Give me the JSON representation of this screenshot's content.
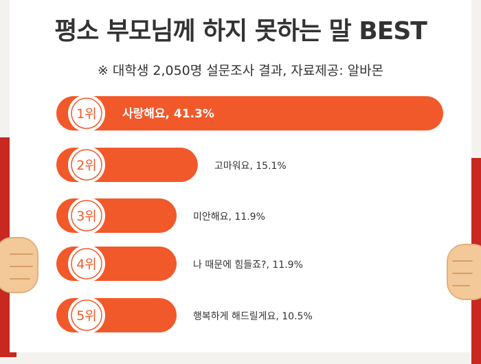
{
  "title": "평소 부모님께 하지 못하는 말 BEST",
  "subtitle": "※ 대학생 2,050명 설문조사 결과,  자료제공: 알바몬",
  "colors": {
    "bar": "#f2592a",
    "badge_bg": "#ffffff",
    "badge_text": "#f2592a",
    "label_inside": "#ffffff",
    "label_outside": "#333333"
  },
  "chart_data": {
    "type": "bar",
    "orientation": "horizontal",
    "title": "평소 부모님께 하지 못하는 말 BEST",
    "subtitle": "※ 대학생 2,050명 설문조사 결과,  자료제공: 알바몬",
    "categories": [
      "1위",
      "2위",
      "3위",
      "4위",
      "5위"
    ],
    "labels": [
      "사랑해요, 41.3%",
      "고마워요, 15.1%",
      "미안해요, 11.9%",
      "나 때문에 힘들죠?, 11.9%",
      "행복하게 해드릴게요, 10.5%"
    ],
    "values": [
      41.3,
      15.1,
      11.9,
      11.9,
      10.5
    ],
    "xlim": [
      0,
      41.3
    ],
    "grid": false,
    "legend": "none"
  }
}
